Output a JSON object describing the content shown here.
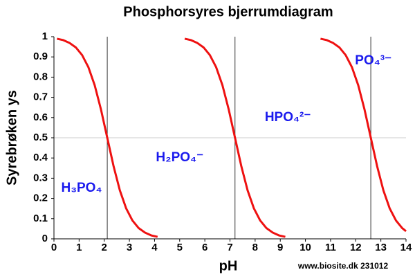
{
  "chart_data": {
    "type": "line",
    "title": "Phosphorsyres bjerrumdiagram",
    "xlabel": "pH",
    "ylabel": "Syrebrøken ys",
    "credit": "www.biosite.dk 231012",
    "xlim": [
      0,
      14
    ],
    "xticks": [
      0,
      1,
      2,
      3,
      4,
      5,
      6,
      7,
      8,
      9,
      10,
      11,
      12,
      13,
      14
    ],
    "ylim": [
      0,
      1
    ],
    "yticks": [
      0,
      0.1,
      0.2,
      0.3,
      0.4,
      0.5,
      0.6,
      0.7,
      0.8,
      0.9,
      1
    ],
    "vlines": [
      2.12,
      7.2,
      12.6
    ],
    "hlines": [
      0.5
    ],
    "color": "#ee1111",
    "series": [
      {
        "x": [
          0.12,
          0.37,
          0.62,
          0.87,
          1.12,
          1.37,
          1.62,
          1.87,
          2.12,
          2.37,
          2.62,
          2.87,
          3.12,
          3.37,
          3.62,
          3.87,
          4.12
        ],
        "values": [
          0.99,
          0.983,
          0.969,
          0.947,
          0.909,
          0.849,
          0.76,
          0.64,
          0.5,
          0.36,
          0.24,
          0.151,
          0.091,
          0.053,
          0.031,
          0.017,
          0.01
        ]
      },
      {
        "x": [
          5.2,
          5.45,
          5.7,
          5.95,
          6.2,
          6.45,
          6.7,
          6.95,
          7.2,
          7.45,
          7.7,
          7.95,
          8.2,
          8.45,
          8.7,
          8.95,
          9.2
        ],
        "values": [
          0.99,
          0.983,
          0.969,
          0.947,
          0.909,
          0.849,
          0.76,
          0.64,
          0.5,
          0.36,
          0.24,
          0.151,
          0.091,
          0.053,
          0.031,
          0.017,
          0.01
        ]
      },
      {
        "x": [
          10.6,
          10.85,
          11.1,
          11.35,
          11.6,
          11.85,
          12.1,
          12.35,
          12.6,
          12.85,
          13.1,
          13.35,
          13.6,
          13.85,
          14
        ],
        "values": [
          0.99,
          0.983,
          0.969,
          0.947,
          0.909,
          0.849,
          0.76,
          0.64,
          0.5,
          0.36,
          0.24,
          0.151,
          0.091,
          0.053,
          0.038
        ]
      }
    ],
    "annotations": [
      {
        "text": "H₃PO₄",
        "x": 1.1,
        "y": 0.25
      },
      {
        "text": "H₂PO₄⁻",
        "x": 5.0,
        "y": 0.4
      },
      {
        "text": "HPO₄²⁻",
        "x": 9.3,
        "y": 0.6
      },
      {
        "text": "PO₄³⁻",
        "x": 12.7,
        "y": 0.88
      }
    ]
  }
}
